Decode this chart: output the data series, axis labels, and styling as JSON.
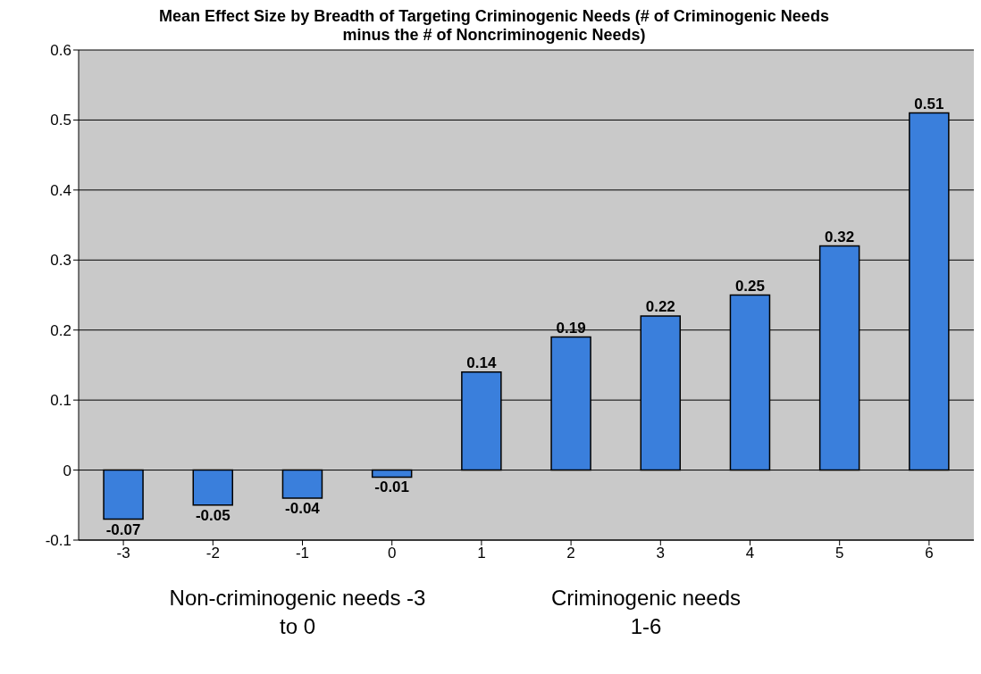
{
  "chart_data": {
    "type": "bar",
    "title": "Mean Effect Size by Breadth of Targeting Criminogenic Needs (# of Criminogenic Needs minus the # of Noncriminogenic Needs)",
    "categories": [
      "-3",
      "-2",
      "-1",
      "0",
      "1",
      "2",
      "3",
      "4",
      "5",
      "6"
    ],
    "values": [
      -0.07,
      -0.05,
      -0.04,
      -0.01,
      0.14,
      0.19,
      0.22,
      0.25,
      0.32,
      0.51
    ],
    "color": "#3a7fdc",
    "ylim": [
      -0.1,
      0.6
    ],
    "yticks": [
      -0.1,
      0,
      0.1,
      0.2,
      0.3,
      0.4,
      0.5,
      0.6
    ],
    "grid": "y",
    "data_labels": true,
    "annotations": [
      "Non-criminogenic needs -3 to 0",
      "Criminogenic needs 1-6"
    ]
  }
}
